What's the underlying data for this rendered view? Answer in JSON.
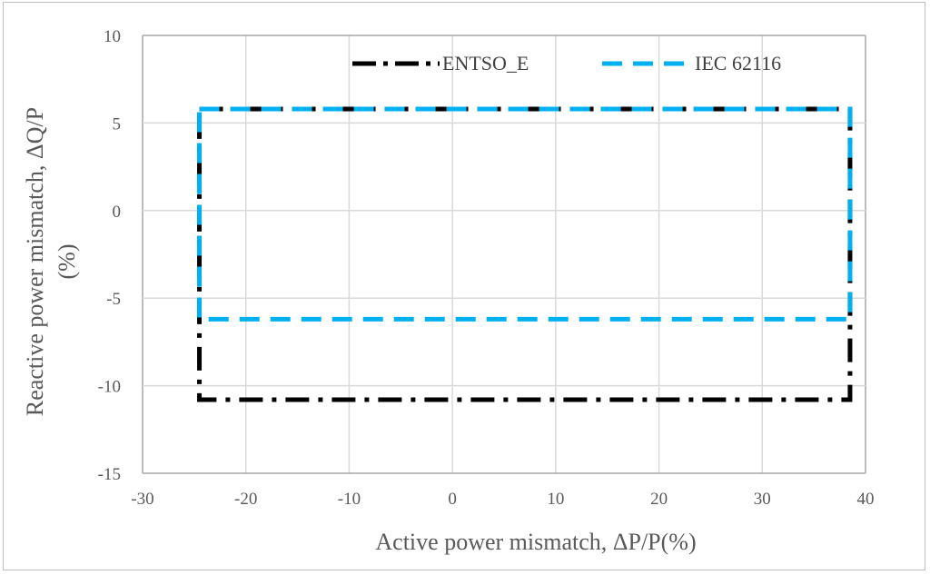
{
  "chart_data": {
    "type": "line",
    "xlabel": "Active power mismatch,  ΔP/P(%)",
    "ylabel_line1": "Reactive  power mismatch, ΔQ/P",
    "ylabel_line2": "(%)",
    "xlim": [
      -30,
      40
    ],
    "ylim": [
      -15,
      10
    ],
    "x_ticks": [
      -30,
      -20,
      -10,
      0,
      10,
      20,
      30,
      40
    ],
    "y_ticks": [
      -15,
      -10,
      -5,
      0,
      5,
      10
    ],
    "x_tick_labels": [
      "-30",
      "-20",
      "-10",
      "0",
      "10",
      "20",
      "30",
      "40"
    ],
    "y_tick_labels": [
      "-15",
      "-10",
      "-5",
      "0",
      "5",
      "10"
    ],
    "grid": true,
    "legend_position": "top-right",
    "series": [
      {
        "name": "ENTSO_E",
        "color": "#000000",
        "style": "dash-dot",
        "x": [
          -24.5,
          38.5,
          38.5,
          -24.5,
          -24.5
        ],
        "y": [
          5.8,
          5.8,
          -10.8,
          -10.8,
          5.8
        ]
      },
      {
        "name": "IEC 62116",
        "color": "#00b0f0",
        "style": "dash",
        "x": [
          -24.5,
          38.5,
          38.5,
          -24.5,
          -24.5
        ],
        "y": [
          5.8,
          5.8,
          -6.2,
          -6.2,
          5.8
        ]
      }
    ]
  }
}
